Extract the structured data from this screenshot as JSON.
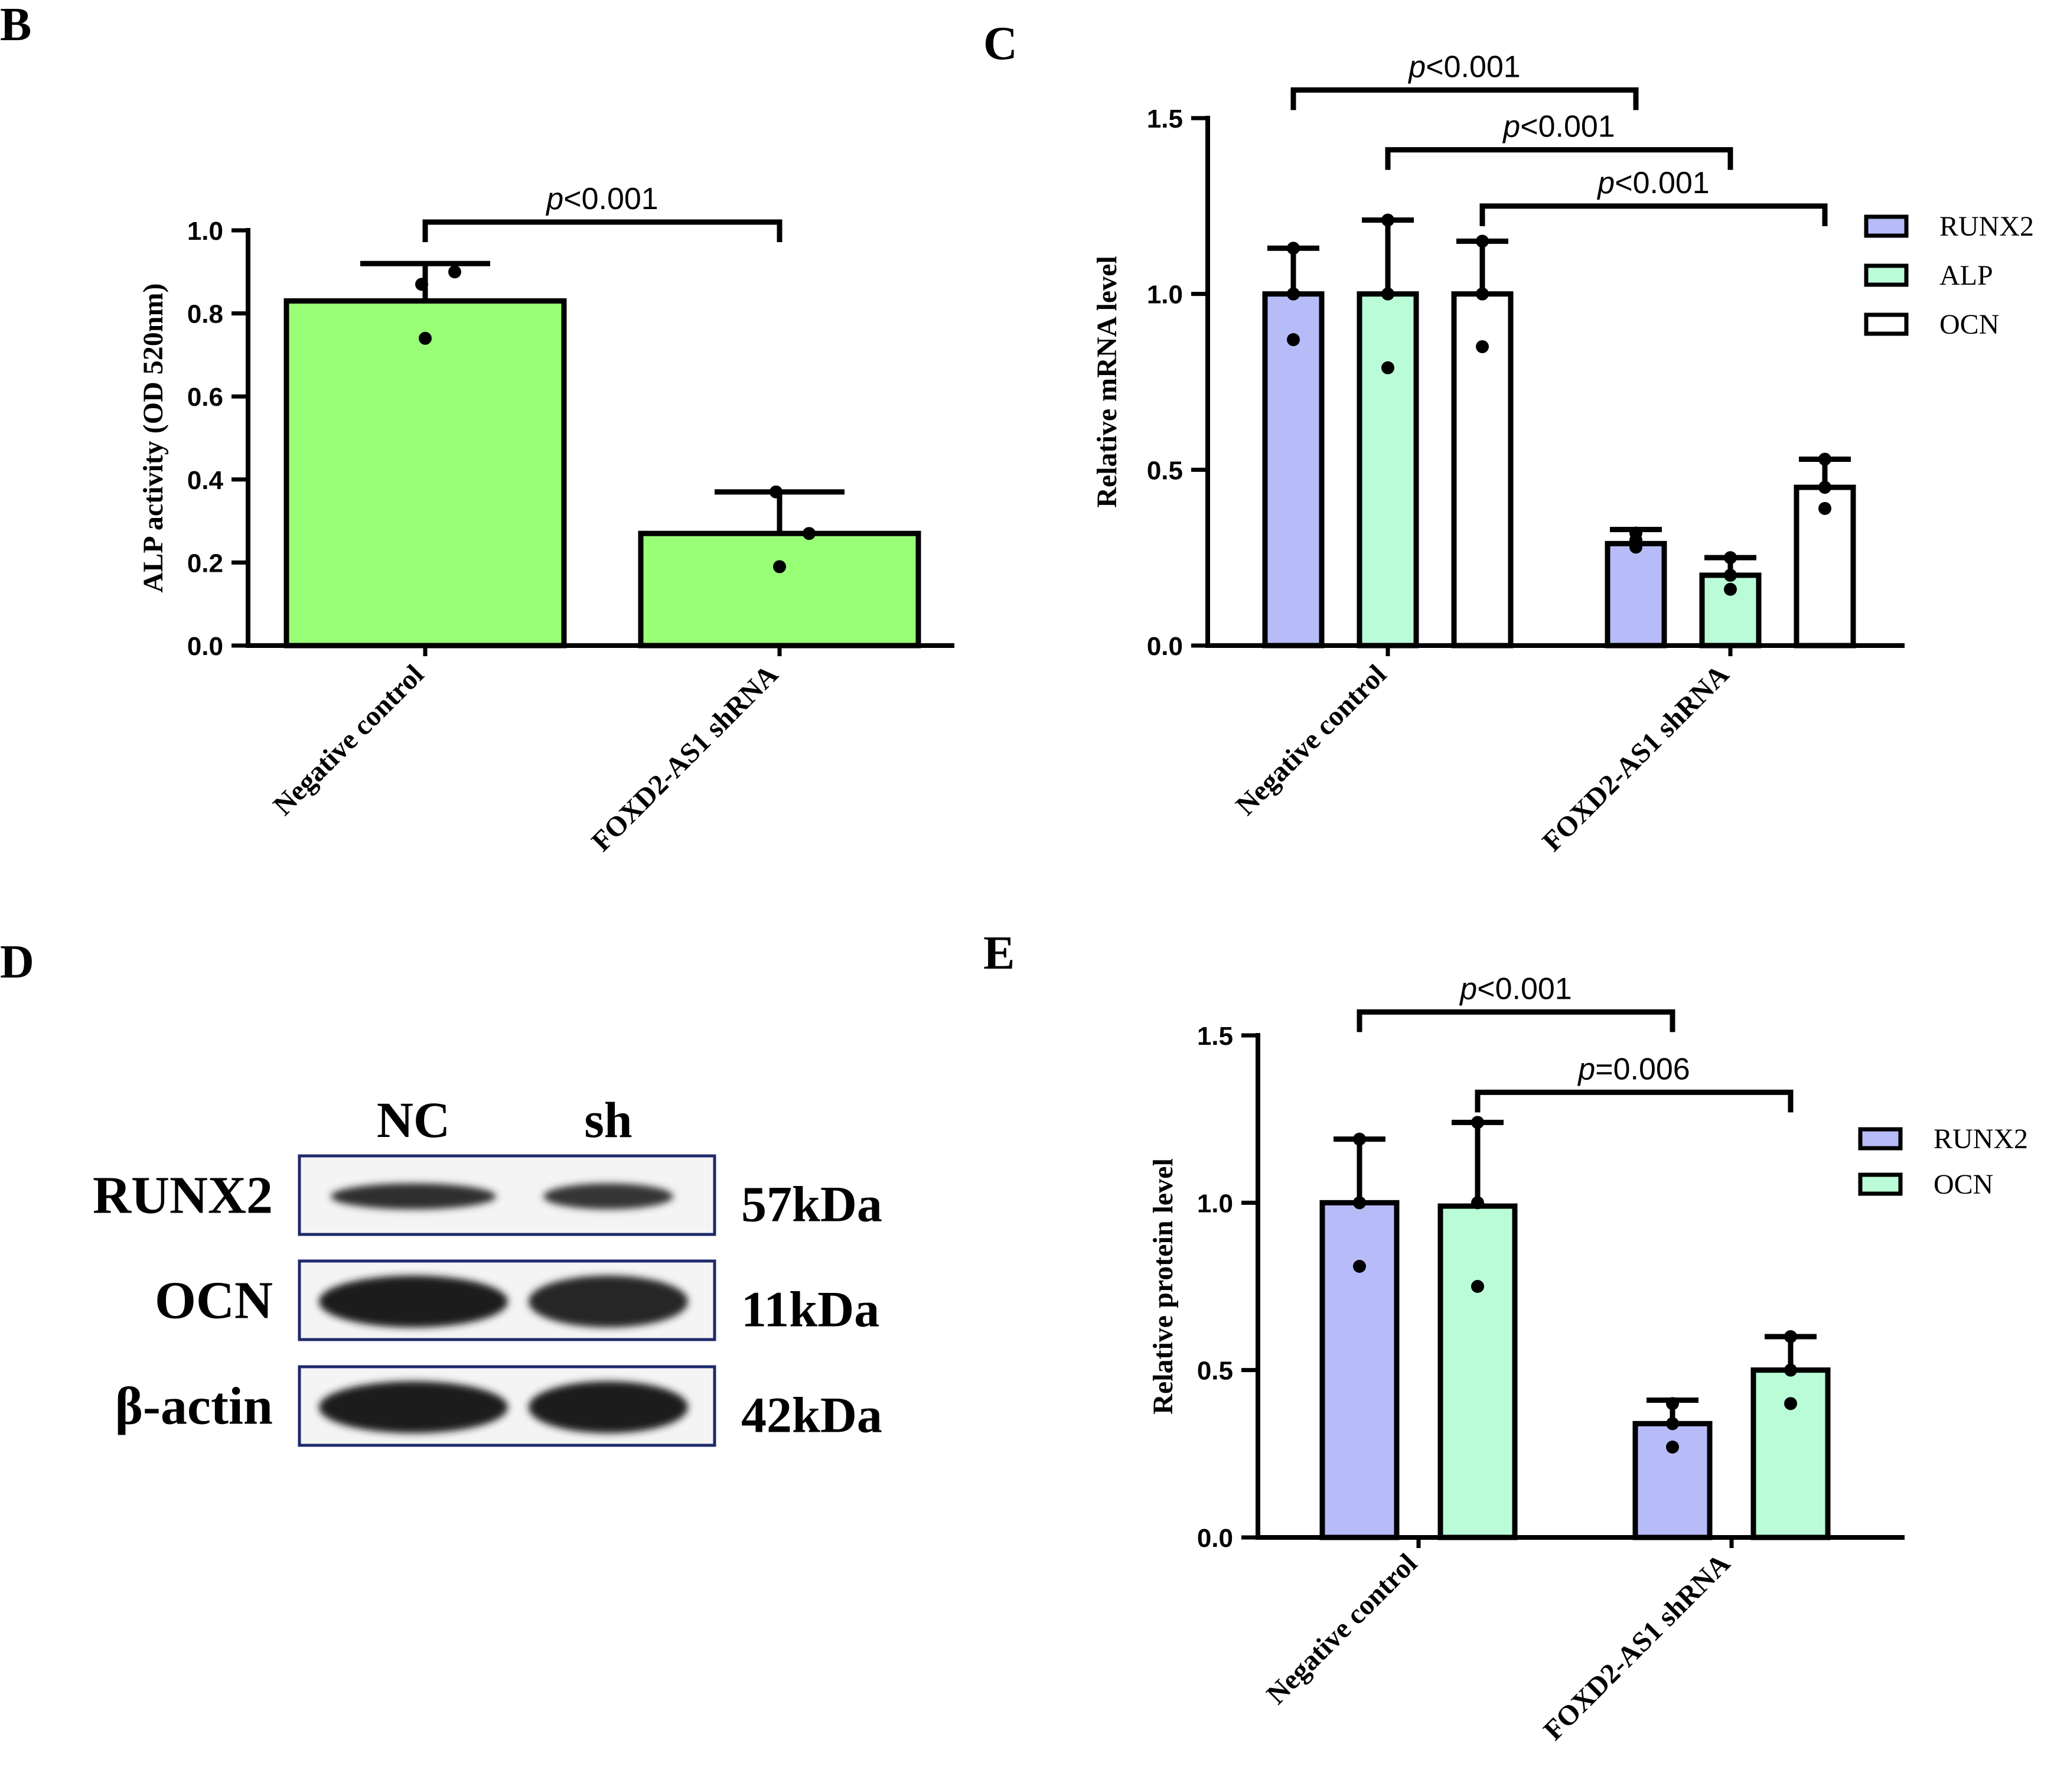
{
  "panel_letters": {
    "b": "B",
    "c": "C",
    "d": "D",
    "e": "E"
  },
  "colors": {
    "green": "#99FF77",
    "blue": "#B7BCF8",
    "mint": "#BBFCD8",
    "white": "#FFFFFF",
    "ink": "#000000",
    "blot_border": "#1E2A6B"
  },
  "chart_data": [
    {
      "id": "B",
      "type": "bar",
      "ylabel": "ALP activity (OD 520nm)",
      "categories": [
        "Negative control",
        "FOXD2-AS1 shRNA"
      ],
      "ylim": [
        0,
        1.0
      ],
      "yticks": [
        "0.0",
        "0.2",
        "0.4",
        "0.6",
        "0.8",
        "1.0"
      ],
      "series": [
        {
          "name": "ALP activity",
          "color": "#99FF77",
          "values": [
            0.83,
            0.27
          ],
          "error": [
            0.09,
            0.1
          ],
          "points": [
            [
              0.87,
              0.9,
              0.74
            ],
            [
              0.37,
              0.27,
              0.19
            ]
          ]
        }
      ],
      "brackets": [
        {
          "from": [
            0,
            0
          ],
          "to": [
            1,
            0
          ],
          "level": 1.02,
          "p": "p",
          "op": "<0.001"
        }
      ]
    },
    {
      "id": "C",
      "type": "bar",
      "ylabel": "Relative mRNA level",
      "categories": [
        "Negative control",
        "FOXD2-AS1 shRNA"
      ],
      "ylim": [
        0,
        1.5
      ],
      "yticks": [
        "0.0",
        "0.5",
        "1.0",
        "1.5"
      ],
      "series": [
        {
          "name": "RUNX2",
          "color": "#B7BCF8",
          "values": [
            1.0,
            0.29
          ],
          "error": [
            0.13,
            0.04
          ],
          "points": [
            [
              1.13,
              1.0,
              0.87
            ],
            [
              0.32,
              0.28,
              0.3
            ]
          ]
        },
        {
          "name": "ALP",
          "color": "#BBFCD8",
          "values": [
            1.0,
            0.2
          ],
          "error": [
            0.21,
            0.05
          ],
          "points": [
            [
              1.21,
              1.0,
              0.79
            ],
            [
              0.25,
              0.2,
              0.16
            ]
          ]
        },
        {
          "name": "OCN",
          "color": "#FFFFFF",
          "values": [
            1.0,
            0.45
          ],
          "error": [
            0.15,
            0.08
          ],
          "points": [
            [
              1.15,
              1.0,
              0.85
            ],
            [
              0.53,
              0.45,
              0.39
            ]
          ]
        }
      ],
      "legend": [
        "RUNX2",
        "ALP",
        "OCN"
      ],
      "brackets": [
        {
          "from": [
            0,
            0
          ],
          "to": [
            1,
            0
          ],
          "level": 1.58,
          "p": "p",
          "op": "<0.001"
        },
        {
          "from": [
            0,
            1
          ],
          "to": [
            1,
            1
          ],
          "level": 1.41,
          "p": "p",
          "op": "<0.001"
        },
        {
          "from": [
            0,
            2
          ],
          "to": [
            1,
            2
          ],
          "level": 1.25,
          "p": "p",
          "op": "<0.001"
        }
      ]
    },
    {
      "id": "E",
      "type": "bar",
      "ylabel": "Relative protein level",
      "categories": [
        "Negative control",
        "FOXD2-AS1 shRNA"
      ],
      "ylim": [
        0,
        1.5
      ],
      "yticks": [
        "0.0",
        "0.5",
        "1.0",
        "1.5"
      ],
      "series": [
        {
          "name": "RUNX2",
          "color": "#B7BCF8",
          "values": [
            1.0,
            0.34
          ],
          "error": [
            0.19,
            0.07
          ],
          "points": [
            [
              1.19,
              1.0,
              0.81
            ],
            [
              0.4,
              0.34,
              0.27
            ]
          ]
        },
        {
          "name": "OCN",
          "color": "#BBFCD8",
          "values": [
            0.99,
            0.5
          ],
          "error": [
            0.25,
            0.1
          ],
          "points": [
            [
              1.24,
              1.0,
              0.75
            ],
            [
              0.6,
              0.5,
              0.4
            ]
          ]
        }
      ],
      "legend": [
        "RUNX2",
        "OCN"
      ],
      "brackets": [
        {
          "from": [
            0,
            0
          ],
          "to": [
            1,
            0
          ],
          "level": 1.57,
          "p": "p",
          "op": "<0.001"
        },
        {
          "from": [
            0,
            1
          ],
          "to": [
            1,
            1
          ],
          "level": 1.33,
          "p": "p",
          "op": "=0.006"
        }
      ]
    }
  ],
  "blot": {
    "lanes": [
      "NC",
      "sh"
    ],
    "rows": [
      {
        "protein": "RUNX2",
        "size": "57kDa",
        "intensity": [
          0.75,
          0.6
        ]
      },
      {
        "protein": "OCN",
        "size": "11kDa",
        "intensity": [
          1.0,
          0.85
        ]
      },
      {
        "protein": "β-actin",
        "size": "42kDa",
        "intensity": [
          1.0,
          1.0
        ]
      }
    ]
  }
}
